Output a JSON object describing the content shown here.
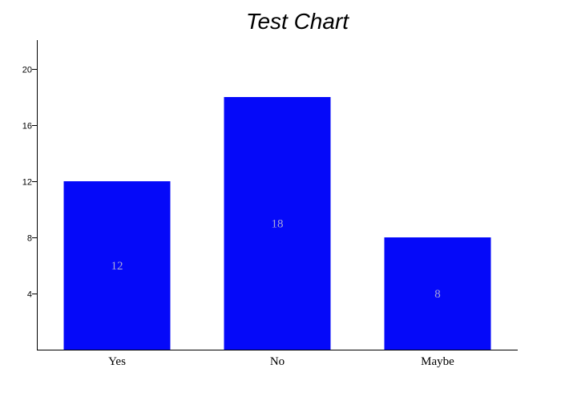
{
  "chart_data": {
    "type": "bar",
    "title": "Test Chart",
    "categories": [
      "Yes",
      "No",
      "Maybe"
    ],
    "values": [
      12,
      18,
      8
    ],
    "data_labels": [
      "12",
      "18",
      "8"
    ],
    "ylim": [
      0,
      22
    ],
    "y_ticks": [
      4,
      8,
      12,
      16,
      20
    ],
    "y_tick_labels": [
      "4",
      "8",
      "12",
      "16",
      "20"
    ],
    "xlabel": "",
    "ylabel": "",
    "grid": false,
    "bar_color": "#0509f9",
    "label_color": "#a9a9d9"
  }
}
